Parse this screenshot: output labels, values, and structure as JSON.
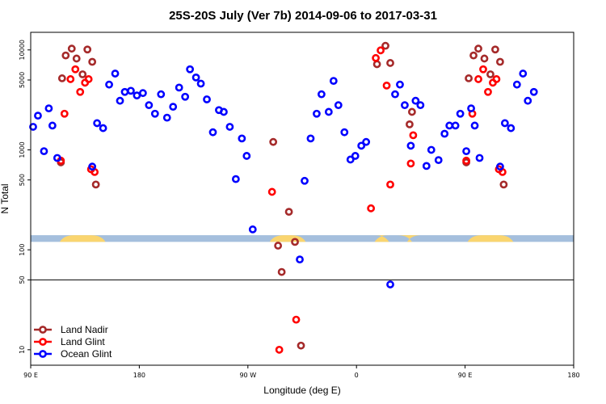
{
  "chart_data": {
    "type": "scatter",
    "title": "25S-20S July (Ver 7b)   2014-09-06 to 2017-03-31",
    "xlabel": "Longitude (deg E)",
    "ylabel": "N Total",
    "xscale": "longitude 90E to 180 (wrapping)",
    "yscale": "log",
    "ylim": [
      7,
      15000
    ],
    "x_ticks": [
      {
        "value": 90,
        "label": "90 E"
      },
      {
        "value": 180,
        "label": "180"
      },
      {
        "value": 270,
        "label": "90 W"
      },
      {
        "value": 360,
        "label": "0"
      },
      {
        "value": 450,
        "label": "90 E"
      },
      {
        "value": 540,
        "label": "180"
      }
    ],
    "y_ticks": [
      {
        "value": 10,
        "label": "10"
      },
      {
        "value": 50,
        "label": "50"
      },
      {
        "value": 100,
        "label": "100"
      },
      {
        "value": 500,
        "label": "500"
      },
      {
        "value": 1000,
        "label": "1000"
      },
      {
        "value": 5000,
        "label": "5000"
      },
      {
        "value": 10000,
        "label": "10000"
      }
    ],
    "reference_lines": [
      50
    ],
    "map_strip": {
      "y_top": 140,
      "y_bottom": 120,
      "ocean_color": "#a5bfdd",
      "land_color": "#fad56f"
    },
    "legend": {
      "position": "bottom-left"
    },
    "series": [
      {
        "name": "Land Nadir",
        "color": "#a52a2a",
        "points": [
          [
            115,
            750
          ],
          [
            116,
            5200
          ],
          [
            119,
            8800
          ],
          [
            124,
            10300
          ],
          [
            128,
            8200
          ],
          [
            133,
            5700
          ],
          [
            137,
            10100
          ],
          [
            141,
            7600
          ],
          [
            144,
            450
          ],
          [
            291,
            1200
          ],
          [
            295,
            110
          ],
          [
            298,
            60
          ],
          [
            304,
            240
          ],
          [
            309,
            120
          ],
          [
            314,
            11
          ],
          [
            377,
            7200
          ],
          [
            384,
            11000
          ],
          [
            388,
            7400
          ],
          [
            404,
            1800
          ],
          [
            406,
            2400
          ],
          [
            451,
            750
          ],
          [
            453,
            5200
          ],
          [
            457,
            8800
          ],
          [
            461,
            10300
          ],
          [
            466,
            8200
          ],
          [
            471,
            5700
          ],
          [
            475,
            10100
          ],
          [
            479,
            7600
          ],
          [
            482,
            450
          ]
        ]
      },
      {
        "name": "Land Glint",
        "color": "#ff0000",
        "points": [
          [
            115,
            780
          ],
          [
            118,
            2300
          ],
          [
            123,
            5100
          ],
          [
            127,
            6400
          ],
          [
            131,
            3800
          ],
          [
            135,
            4700
          ],
          [
            138,
            5100
          ],
          [
            140,
            640
          ],
          [
            143,
            600
          ],
          [
            290,
            380
          ],
          [
            296,
            10
          ],
          [
            310,
            20
          ],
          [
            372,
            260
          ],
          [
            376,
            8300
          ],
          [
            380,
            9900
          ],
          [
            385,
            4400
          ],
          [
            388,
            450
          ],
          [
            405,
            730
          ],
          [
            407,
            1400
          ],
          [
            451,
            780
          ],
          [
            456,
            2300
          ],
          [
            461,
            5100
          ],
          [
            465,
            6400
          ],
          [
            469,
            3800
          ],
          [
            473,
            4700
          ],
          [
            476,
            5100
          ],
          [
            478,
            640
          ],
          [
            481,
            600
          ]
        ]
      },
      {
        "name": "Ocean Glint",
        "color": "#0000ff",
        "points": [
          [
            92,
            1700
          ],
          [
            96,
            2200
          ],
          [
            101,
            970
          ],
          [
            105,
            2600
          ],
          [
            108,
            1750
          ],
          [
            112,
            830
          ],
          [
            141,
            680
          ],
          [
            145,
            1850
          ],
          [
            150,
            1650
          ],
          [
            155,
            4500
          ],
          [
            160,
            5800
          ],
          [
            164,
            3100
          ],
          [
            168,
            3800
          ],
          [
            173,
            3900
          ],
          [
            178,
            3500
          ],
          [
            183,
            3700
          ],
          [
            188,
            2800
          ],
          [
            193,
            2300
          ],
          [
            198,
            3600
          ],
          [
            203,
            2100
          ],
          [
            208,
            2700
          ],
          [
            213,
            4200
          ],
          [
            218,
            3400
          ],
          [
            222,
            6400
          ],
          [
            227,
            5300
          ],
          [
            231,
            4600
          ],
          [
            236,
            3200
          ],
          [
            241,
            1500
          ],
          [
            246,
            2500
          ],
          [
            250,
            2400
          ],
          [
            255,
            1700
          ],
          [
            260,
            510
          ],
          [
            265,
            1300
          ],
          [
            269,
            870
          ],
          [
            274,
            160
          ],
          [
            313,
            80
          ],
          [
            317,
            490
          ],
          [
            322,
            1300
          ],
          [
            327,
            2300
          ],
          [
            331,
            3600
          ],
          [
            337,
            2400
          ],
          [
            341,
            4900
          ],
          [
            345,
            2800
          ],
          [
            350,
            1500
          ],
          [
            355,
            800
          ],
          [
            359,
            870
          ],
          [
            364,
            1100
          ],
          [
            368,
            1200
          ],
          [
            388,
            45
          ],
          [
            392,
            3600
          ],
          [
            396,
            4500
          ],
          [
            400,
            2800
          ],
          [
            405,
            1100
          ],
          [
            409,
            3100
          ],
          [
            413,
            2800
          ],
          [
            418,
            690
          ],
          [
            422,
            1000
          ],
          [
            428,
            790
          ],
          [
            433,
            1450
          ],
          [
            437,
            1750
          ],
          [
            442,
            1750
          ],
          [
            446,
            2300
          ],
          [
            451,
            970
          ],
          [
            455,
            2600
          ],
          [
            458,
            1750
          ],
          [
            462,
            830
          ],
          [
            479,
            680
          ],
          [
            483,
            1850
          ],
          [
            488,
            1650
          ],
          [
            493,
            4500
          ],
          [
            498,
            5800
          ],
          [
            502,
            3100
          ],
          [
            507,
            3800
          ]
        ]
      }
    ]
  }
}
